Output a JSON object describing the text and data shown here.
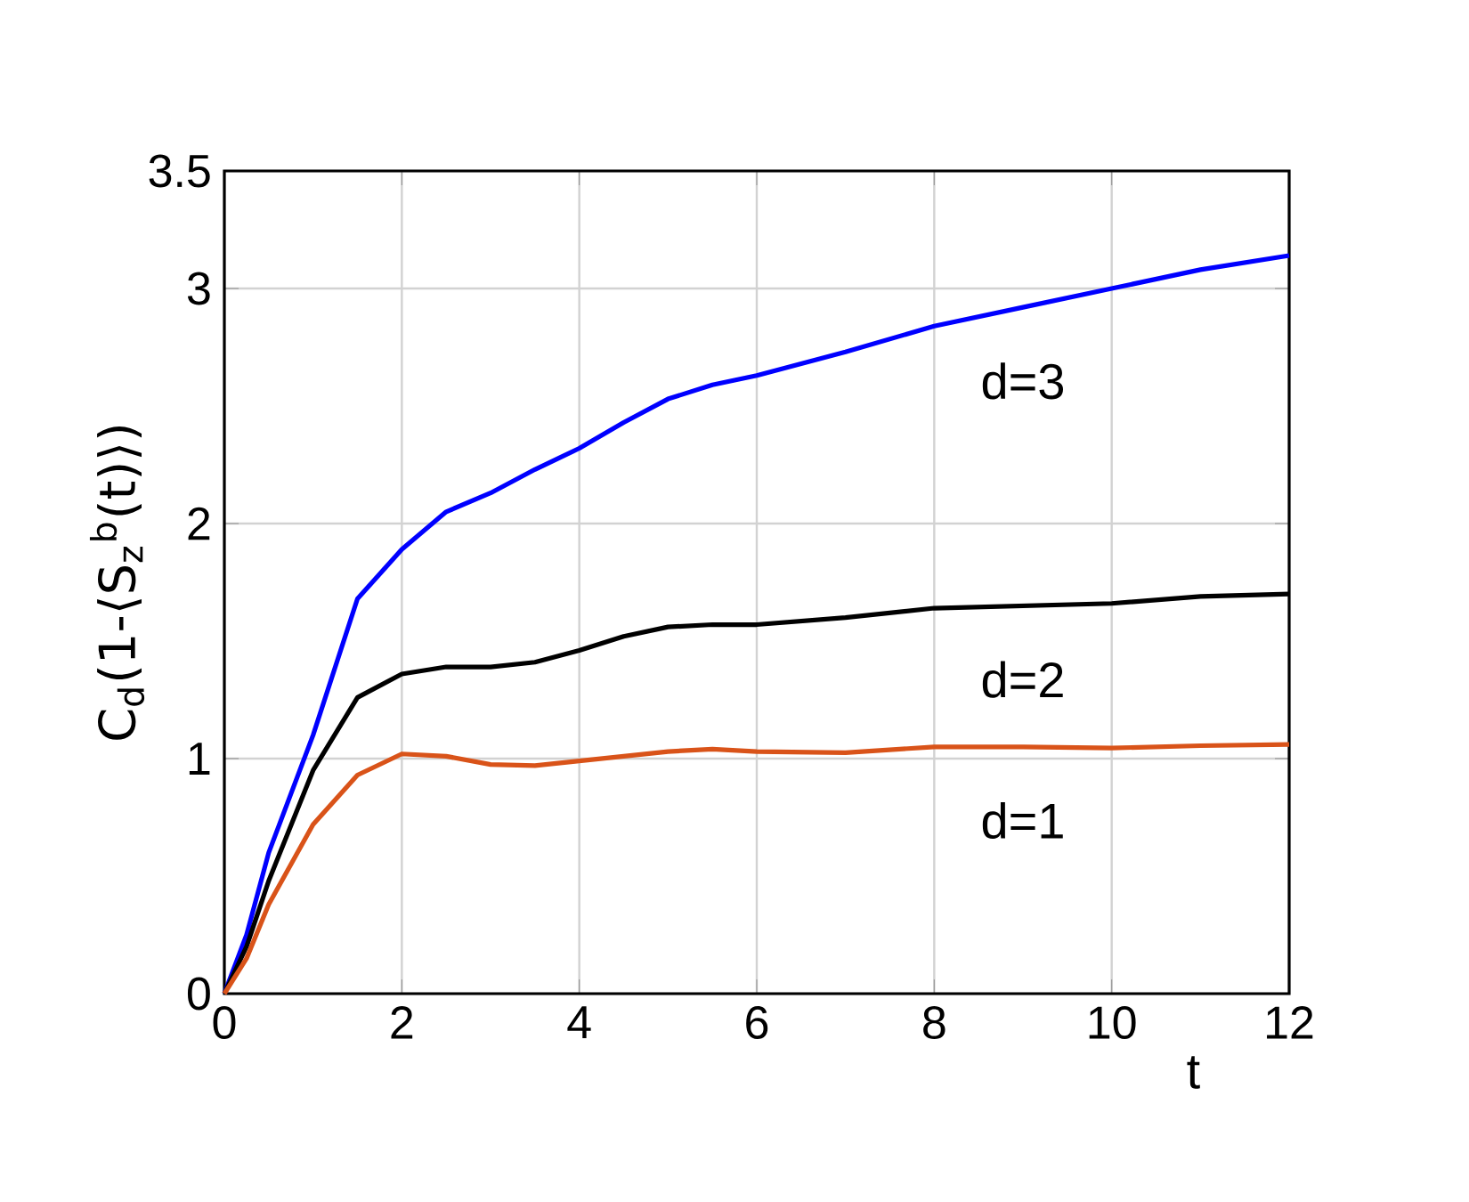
{
  "chart_data": {
    "type": "line",
    "xlabel": "t",
    "ylabel": "C$_{d}$(1-⟨S$_{z}$$^{b}$(t)⟩)",
    "x": [
      0,
      0.25,
      0.5,
      1,
      1.5,
      2,
      2.5,
      3,
      3.5,
      4,
      4.5,
      5,
      5.5,
      6,
      7,
      8,
      9,
      10,
      11,
      12
    ],
    "series": [
      {
        "name": "d=3",
        "color": "#0000ff",
        "values": [
          0,
          0.25,
          0.6,
          1.1,
          1.68,
          1.89,
          2.05,
          2.13,
          2.23,
          2.32,
          2.43,
          2.53,
          2.59,
          2.63,
          2.73,
          2.84,
          2.92,
          3.0,
          3.08,
          3.14
        ]
      },
      {
        "name": "d=2",
        "color": "#000000",
        "values": [
          0,
          0.2,
          0.48,
          0.95,
          1.26,
          1.36,
          1.39,
          1.39,
          1.41,
          1.46,
          1.52,
          1.56,
          1.57,
          1.57,
          1.6,
          1.64,
          1.65,
          1.66,
          1.69,
          1.7
        ]
      },
      {
        "name": "d=1",
        "color": "#d95319",
        "values": [
          0,
          0.15,
          0.38,
          0.72,
          0.93,
          1.02,
          1.01,
          0.975,
          0.97,
          0.99,
          1.01,
          1.03,
          1.04,
          1.03,
          1.025,
          1.05,
          1.05,
          1.045,
          1.055,
          1.06
        ]
      }
    ],
    "xlim": [
      0,
      12
    ],
    "ylim": [
      0,
      3.5
    ],
    "xticks": [
      0,
      2,
      4,
      6,
      8,
      10,
      12
    ],
    "yticks": [
      0,
      1,
      2,
      3,
      3.5
    ],
    "grid": true,
    "legend": false,
    "marker": "none",
    "line_style": "solid"
  }
}
